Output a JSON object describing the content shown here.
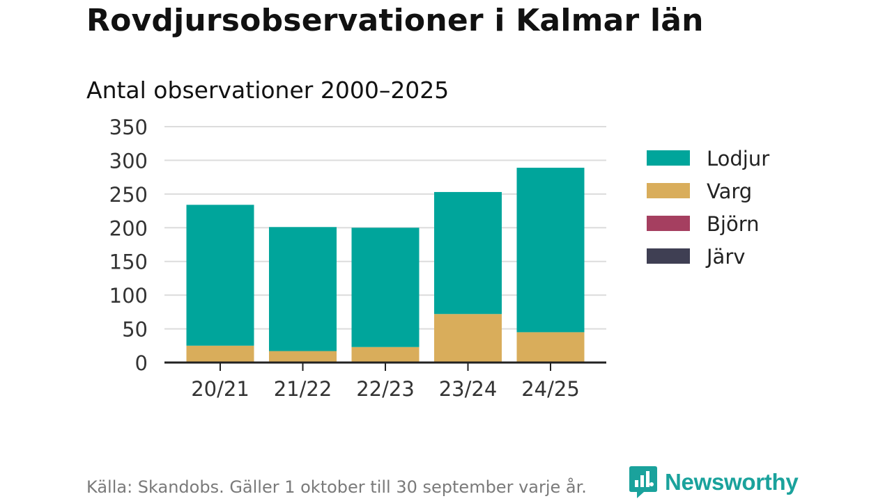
{
  "title": "Rovdjursobservationer i Kalmar län",
  "subtitle": "Antal observationer 2000–2025",
  "footer": "Källa: Skandobs. Gäller 1 oktober till 30 september varje år.",
  "brand": {
    "name": "Newsworthy",
    "icon": "newsworthy-logo-icon",
    "color": "#1aa29c"
  },
  "chart_data": {
    "type": "bar",
    "stacked": true,
    "title": "Antal observationer 2000–2025",
    "xlabel": "",
    "ylabel": "",
    "categories": [
      "20/21",
      "21/22",
      "22/23",
      "23/24",
      "24/25"
    ],
    "ylim": [
      0,
      350
    ],
    "yticks": [
      0,
      50,
      100,
      150,
      200,
      250,
      300,
      350
    ],
    "grid": true,
    "legend_position": "right",
    "series": [
      {
        "name": "Lodjur",
        "color": "#00a59b",
        "values": [
          209,
          184,
          177,
          181,
          244
        ]
      },
      {
        "name": "Varg",
        "color": "#d9ad5b",
        "values": [
          25,
          17,
          23,
          72,
          45
        ]
      },
      {
        "name": "Björn",
        "color": "#a53f60",
        "values": [
          0,
          0,
          0,
          0,
          0
        ]
      },
      {
        "name": "Järv",
        "color": "#3f3f53",
        "values": [
          0,
          0,
          0,
          0,
          0
        ]
      }
    ]
  }
}
